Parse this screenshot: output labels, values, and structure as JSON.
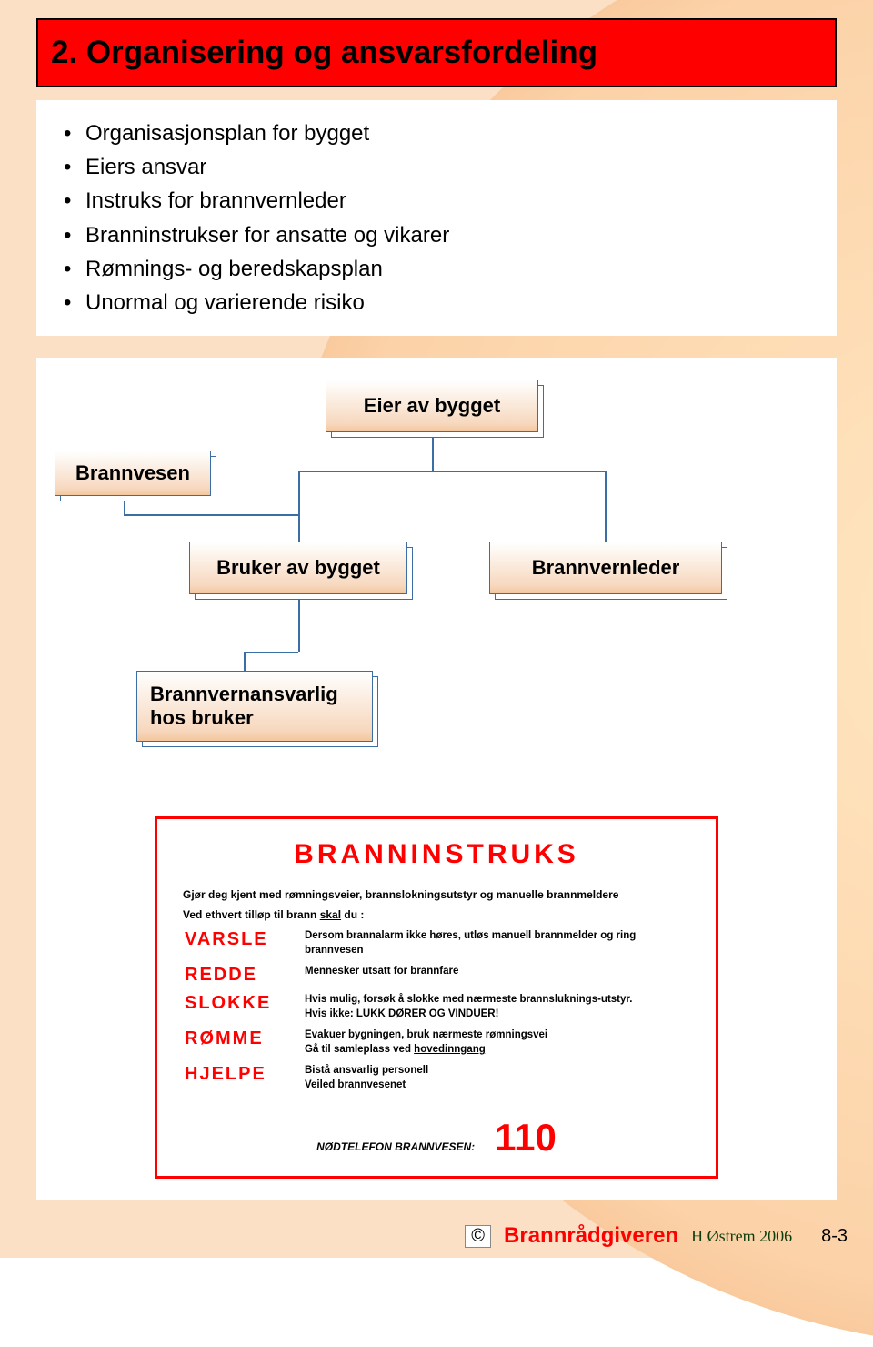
{
  "title": "2. Organisering og ansvarsfordeling",
  "bullets": [
    "Organisasjonsplan for bygget",
    "Eiers ansvar",
    "Instruks for brannvernleder",
    "Branninstrukser for ansatte og vikarer",
    "Rømnings- og beredskapsplan",
    "Unormal og varierende risiko"
  ],
  "org": {
    "nodes": {
      "eier": "Eier av bygget",
      "brannvesen": "Brannvesen",
      "bruker": "Bruker av bygget",
      "brannvernleder": "Brannvernleder",
      "ansvarlig": "Brannvernansvarlig hos bruker"
    }
  },
  "instruks": {
    "title": "BRANNINSTRUKS",
    "intro1": "Gjør deg kjent med rømningsveier, brannslokningsutstyr og manuelle brannmeldere",
    "intro2_pre": "Ved ethvert tilløp til brann ",
    "intro2_mid": "skal",
    "intro2_post": " du :",
    "actions": [
      {
        "label": "VARSLE",
        "desc": "Dersom brannalarm ikke høres, utløs manuell brannmelder og ring brannvesen"
      },
      {
        "label": "REDDE",
        "desc": "Mennesker utsatt for brannfare"
      },
      {
        "label": "SLOKKE",
        "desc": "Hvis mulig, forsøk å slokke med nærmeste brannsluknings-utstyr.\nHvis ikke: LUKK DØRER OG VINDUER!"
      },
      {
        "label": "RØMME",
        "desc": "Evakuer bygningen, bruk nærmeste rømningsvei\nGå til samleplass ved <u>hovedinngang</u>"
      },
      {
        "label": "HJELPE",
        "desc": "Bistå ansvarlig personell\nVeiled brannvesenet"
      }
    ],
    "emergency_label": "NØDTELEFON BRANNVESEN:",
    "emergency_number": "110"
  },
  "footer": {
    "copyright": "©",
    "brand": "Brannrådgiveren",
    "author": "H Østrem 2006",
    "page": "8-3"
  },
  "colors": {
    "red": "#fe0000",
    "node_border": "#3a6ea5",
    "page_bg": "#fbe0c5"
  }
}
